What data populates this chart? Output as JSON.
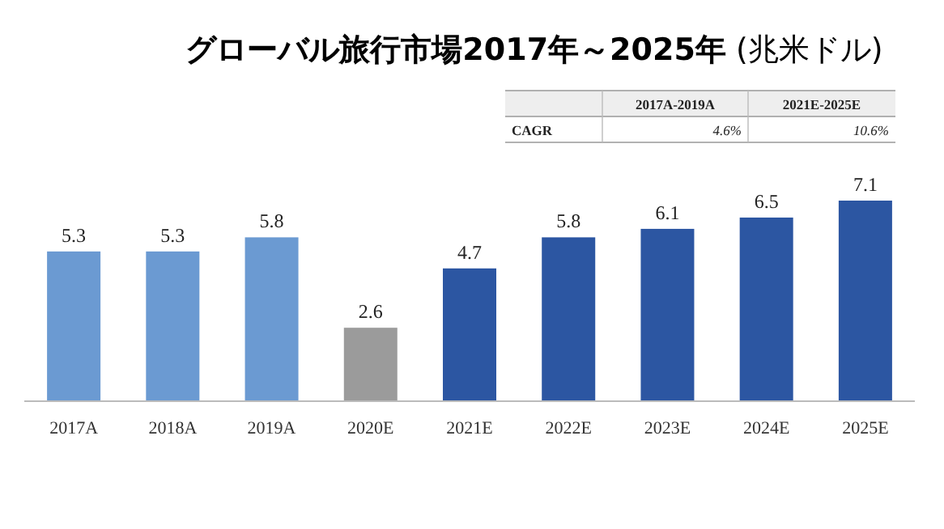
{
  "chart_data": {
    "type": "bar",
    "title": "**グローバル旅行市場2017年～2025年** (兆米ドル)",
    "categories": [
      "2017A",
      "2018A",
      "2019A",
      "2020E",
      "2021E",
      "2022E",
      "2023E",
      "2024E",
      "2025E"
    ],
    "values": [
      5.3,
      5.3,
      5.8,
      2.6,
      4.7,
      5.8,
      6.1,
      6.5,
      7.1
    ],
    "colors": [
      "#6b9ad2",
      "#6b9ad2",
      "#6b9ad2",
      "#9b9b9b",
      "#2c56a2",
      "#2c56a2",
      "#2c56a2",
      "#2c56a2",
      "#2c56a2"
    ],
    "data_labels": true,
    "annotations": [
      "2017A-2019A",
      "2021E-2025E",
      "CAGR",
      "4.6%",
      "10.6%"
    ]
  }
}
